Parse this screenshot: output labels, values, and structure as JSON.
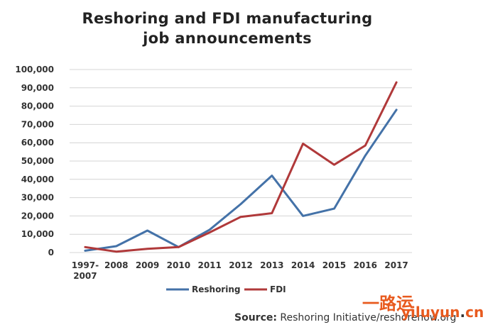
{
  "chart_data": {
    "type": "line",
    "title_lines": [
      "Reshoring and FDI manufacturing",
      "job announcements"
    ],
    "categories": [
      "1997-\n2007",
      "2008",
      "2009",
      "2010",
      "2011",
      "2012",
      "2013",
      "2014",
      "2015",
      "2016",
      "2017"
    ],
    "series": [
      {
        "name": "Reshoring",
        "color": "#4472a8",
        "values": [
          1000,
          3500,
          12000,
          3000,
          12500,
          26500,
          42000,
          20000,
          24000,
          53000,
          78000
        ]
      },
      {
        "name": "FDI",
        "color": "#b0393a",
        "values": [
          3000,
          500,
          2000,
          3000,
          11000,
          19500,
          21500,
          59500,
          48000,
          58500,
          93000
        ]
      }
    ],
    "y_ticks": [
      0,
      10000,
      20000,
      30000,
      40000,
      50000,
      60000,
      70000,
      80000,
      90000,
      100000
    ],
    "y_tick_labels": [
      "0",
      "10,000",
      "20,000",
      "30,000",
      "40,000",
      "50,000",
      "60,000",
      "70,000",
      "80,000",
      "90,000",
      "100,000"
    ],
    "ylim": [
      0,
      100000
    ],
    "grid": true,
    "legend_position": "bottom"
  },
  "source": {
    "label": "Source:",
    "text": " Reshoring Initiative/reshorenow.org"
  },
  "watermark": {
    "cn": "一路运",
    "en_left": "yiluyun",
    "en_dot": ".",
    "en_right": "cn"
  }
}
